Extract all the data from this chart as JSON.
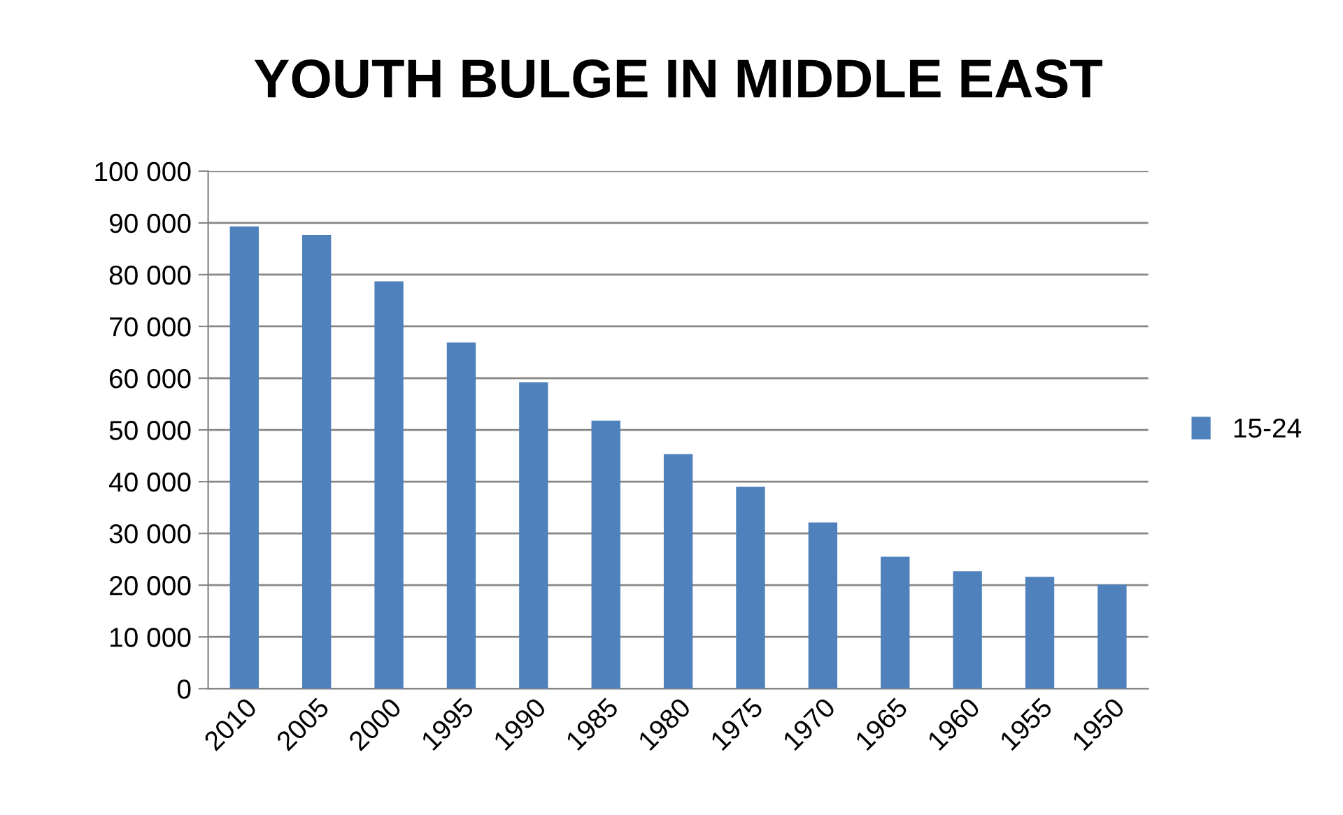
{
  "chart_data": {
    "type": "bar",
    "title": "YOUTH BULGE IN MIDDLE EAST",
    "categories": [
      "2010",
      "2005",
      "2000",
      "1995",
      "1990",
      "1985",
      "1980",
      "1975",
      "1970",
      "1965",
      "1960",
      "1955",
      "1950"
    ],
    "series": [
      {
        "name": "15-24",
        "color": "#4f81bd",
        "values": [
          89300,
          87700,
          78700,
          66900,
          59200,
          51800,
          45300,
          39000,
          32100,
          25500,
          22700,
          21600,
          20100
        ]
      }
    ],
    "ylim": [
      0,
      100000
    ],
    "yticks": [
      0,
      {
        "value": 10000,
        "label": "10 000"
      },
      {
        "value": 20000,
        "label": "20 000"
      },
      {
        "value": 30000,
        "label": "30 000"
      },
      {
        "value": 40000,
        "label": "40 000"
      },
      {
        "value": 50000,
        "label": "50 000"
      },
      {
        "value": 60000,
        "label": "60 000"
      },
      {
        "value": 70000,
        "label": "70 000"
      },
      {
        "value": 80000,
        "label": "80 000"
      },
      {
        "value": 90000,
        "label": "90 000"
      },
      {
        "value": 100000,
        "label": "100 000"
      }
    ],
    "grid": "y",
    "legend": "right"
  }
}
